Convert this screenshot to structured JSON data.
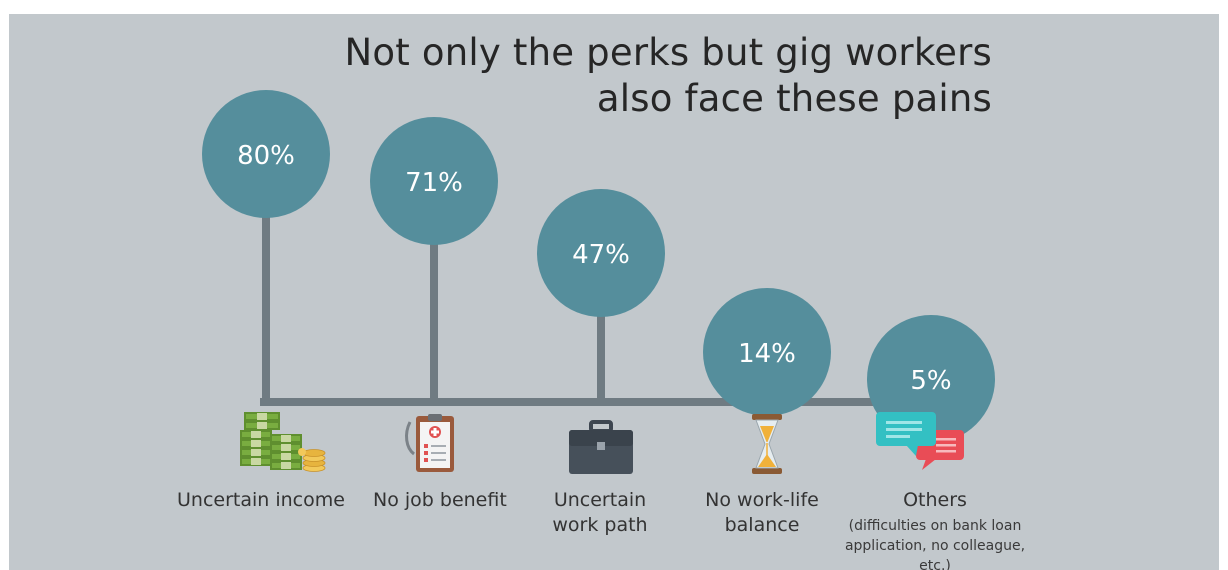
{
  "title_lines": [
    "Not only the perks but gig workers",
    "also face these pains"
  ],
  "colors": {
    "background": "#c2c8cc",
    "bubble": "#558e9c",
    "stem": "#6f7b82",
    "bubble_text": "#ffffff",
    "label_text": "#333333"
  },
  "chart_data": {
    "type": "bar",
    "style": "lollipop",
    "title": "Not only the perks but gig workers also face these pains",
    "categories": [
      "Uncertain income",
      "No job benefit",
      "Uncertain work path",
      "No work-life balance",
      "Others"
    ],
    "category_notes": [
      "",
      "",
      "",
      "",
      "(difficulties on bank loan application, no colleague, etc.)"
    ],
    "values": [
      80,
      71,
      47,
      14,
      5
    ],
    "value_labels": [
      "80%",
      "71%",
      "47%",
      "14%",
      "5%"
    ],
    "icons": [
      "money-stack-icon",
      "medical-clipboard-icon",
      "briefcase-icon",
      "hourglass-icon",
      "chat-bubbles-icon"
    ],
    "unit": "%",
    "ylim": [
      0,
      100
    ],
    "grid": false,
    "legend": "none"
  }
}
